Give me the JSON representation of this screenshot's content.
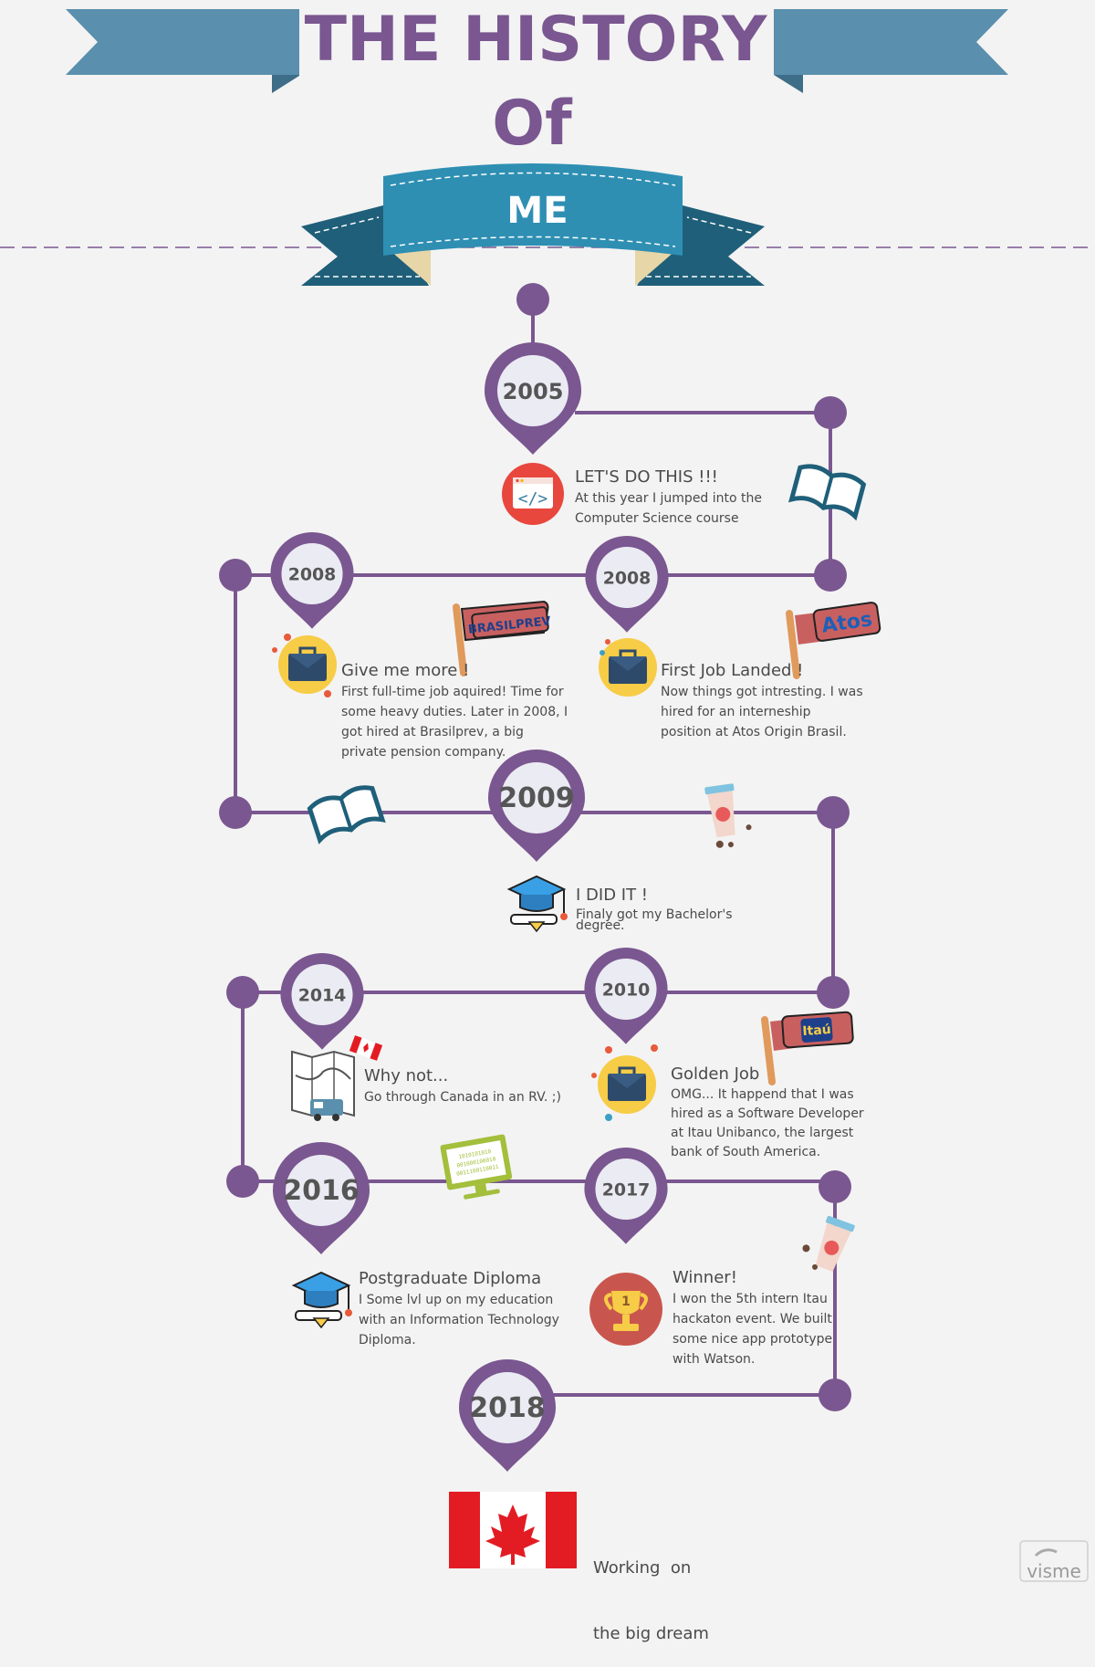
{
  "title": {
    "line1": "THE HISTORY",
    "line2": "Of",
    "line3": "ME"
  },
  "milestones": [
    {
      "year": "2005",
      "heading": "LET'S DO THIS !!!",
      "text": [
        "At this year I jumped into the",
        "Computer Science course"
      ],
      "icon": "code-window-icon"
    },
    {
      "year": "2008",
      "heading": "First Job Landed !",
      "text": [
        "Now things got intresting. I was",
        "hired for an interneship",
        "position at Atos Origin Brasil."
      ],
      "icon": "briefcase-icon",
      "flag": "Atos"
    },
    {
      "year": "2008",
      "heading": "Give me more !",
      "text": [
        "First full-time job aquired! Time for",
        "some heavy duties. Later in 2008, I",
        "got hired at Brasilprev, a big",
        "private pension company."
      ],
      "icon": "briefcase-icon",
      "flag": "BRASILPREV"
    },
    {
      "year": "2009",
      "heading": "I DID IT !",
      "text": [
        "Finaly got my Bachelor's",
        "degree."
      ],
      "icon": "graduation-cap-icon"
    },
    {
      "year": "2010",
      "heading": "Golden Job",
      "text": [
        "OMG... It happend that I was",
        "hired as a Software Developer",
        "at Itau Unibanco, the largest",
        "bank of South America."
      ],
      "icon": "briefcase-icon",
      "flag": "Itaú"
    },
    {
      "year": "2014",
      "heading": "Why not...",
      "text": [
        "Go through Canada in an RV.  ;)"
      ],
      "icon": "map-rv-icon"
    },
    {
      "year": "2016",
      "heading": "Postgraduate Diploma",
      "text": [
        "I Some lvl up on my education",
        "with an Information Technology",
        "Diploma."
      ],
      "icon": "graduation-cap-icon"
    },
    {
      "year": "2017",
      "heading": "Winner!",
      "text": [
        "I won the 5th intern Itau",
        "hackaton event. We built",
        "some nice app prototype",
        "with Watson."
      ],
      "icon": "trophy-icon",
      "trophy_label": "1"
    },
    {
      "year": "2018",
      "heading": "Working  on",
      "heading2": "the big dream",
      "icon": "canada-flag-icon"
    }
  ],
  "monitor_text": [
    "1010101010",
    "001000100010",
    "0011100110011"
  ],
  "branding": "visme",
  "colors": {
    "purple": "#7a5790",
    "pin_inner": "#ebebf3",
    "banner_blue": "#5a8fad",
    "ribbon_teal": "#2e8fb3",
    "ribbon_dark": "#1f5f79"
  }
}
